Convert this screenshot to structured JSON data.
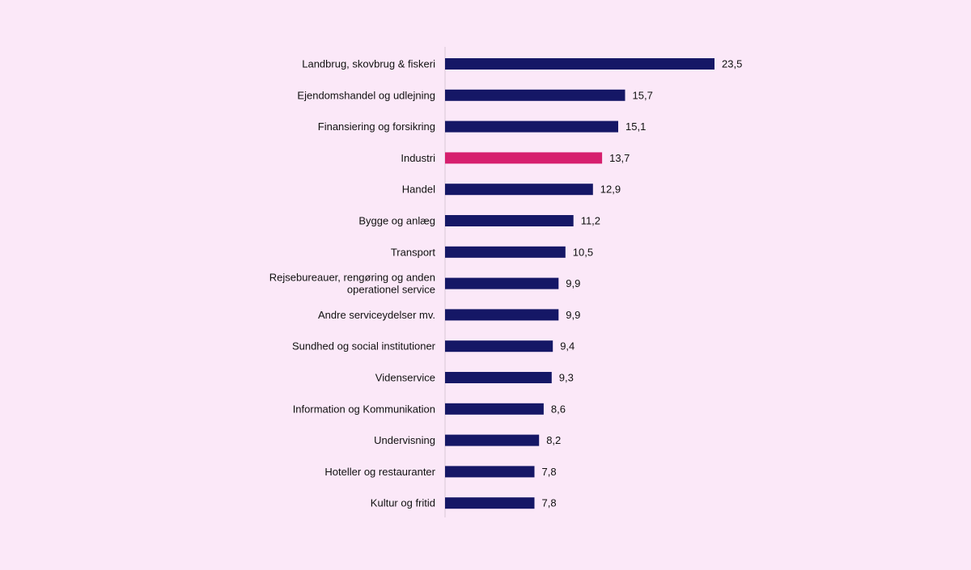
{
  "chart_data": {
    "type": "bar",
    "orientation": "horizontal",
    "categories": [
      "Landbrug, skovbrug & fiskeri",
      "Ejendomshandel og udlejning",
      "Finansiering og forsikring",
      "Industri",
      "Handel",
      "Bygge og anlæg",
      "Transport",
      "Rejsebureauer, rengøring og anden operationel service",
      "Andre serviceydelser mv.",
      "Sundhed og social institutioner",
      "Videnservice",
      "Information og Kommunikation",
      "Undervisning",
      "Hoteller og restauranter",
      "Kultur og fritid"
    ],
    "category_lines": [
      [
        "Landbrug, skovbrug & fiskeri"
      ],
      [
        "Ejendomshandel og udlejning"
      ],
      [
        "Finansiering og forsikring"
      ],
      [
        "Industri"
      ],
      [
        "Handel"
      ],
      [
        "Bygge og anlæg"
      ],
      [
        "Transport"
      ],
      [
        "Rejsebureauer, rengøring og anden",
        "operationel service"
      ],
      [
        "Andre serviceydelser mv."
      ],
      [
        "Sundhed og social institutioner"
      ],
      [
        "Videnservice"
      ],
      [
        "Information og Kommunikation"
      ],
      [
        "Undervisning"
      ],
      [
        "Hoteller og restauranter"
      ],
      [
        "Kultur og fritid"
      ]
    ],
    "values": [
      23.5,
      15.7,
      15.1,
      13.7,
      12.9,
      11.2,
      10.5,
      9.9,
      9.9,
      9.4,
      9.3,
      8.6,
      8.2,
      7.8,
      7.8
    ],
    "value_labels": [
      "23,5",
      "15,7",
      "15,1",
      "13,7",
      "12,9",
      "11,2",
      "10,5",
      "9,9",
      "9,9",
      "9,4",
      "9,3",
      "8,6",
      "8,2",
      "7,8",
      "7,8"
    ],
    "highlight_category": "Industri",
    "xlim": [
      0,
      23.5
    ],
    "grid": false,
    "legend": "none",
    "title": "",
    "xlabel": "",
    "ylabel": ""
  },
  "colors": {
    "background": "#fbe8f8",
    "bar": "#151766",
    "highlight": "#d61f6e",
    "axis": "#d8c8d6",
    "text": "#111111"
  }
}
